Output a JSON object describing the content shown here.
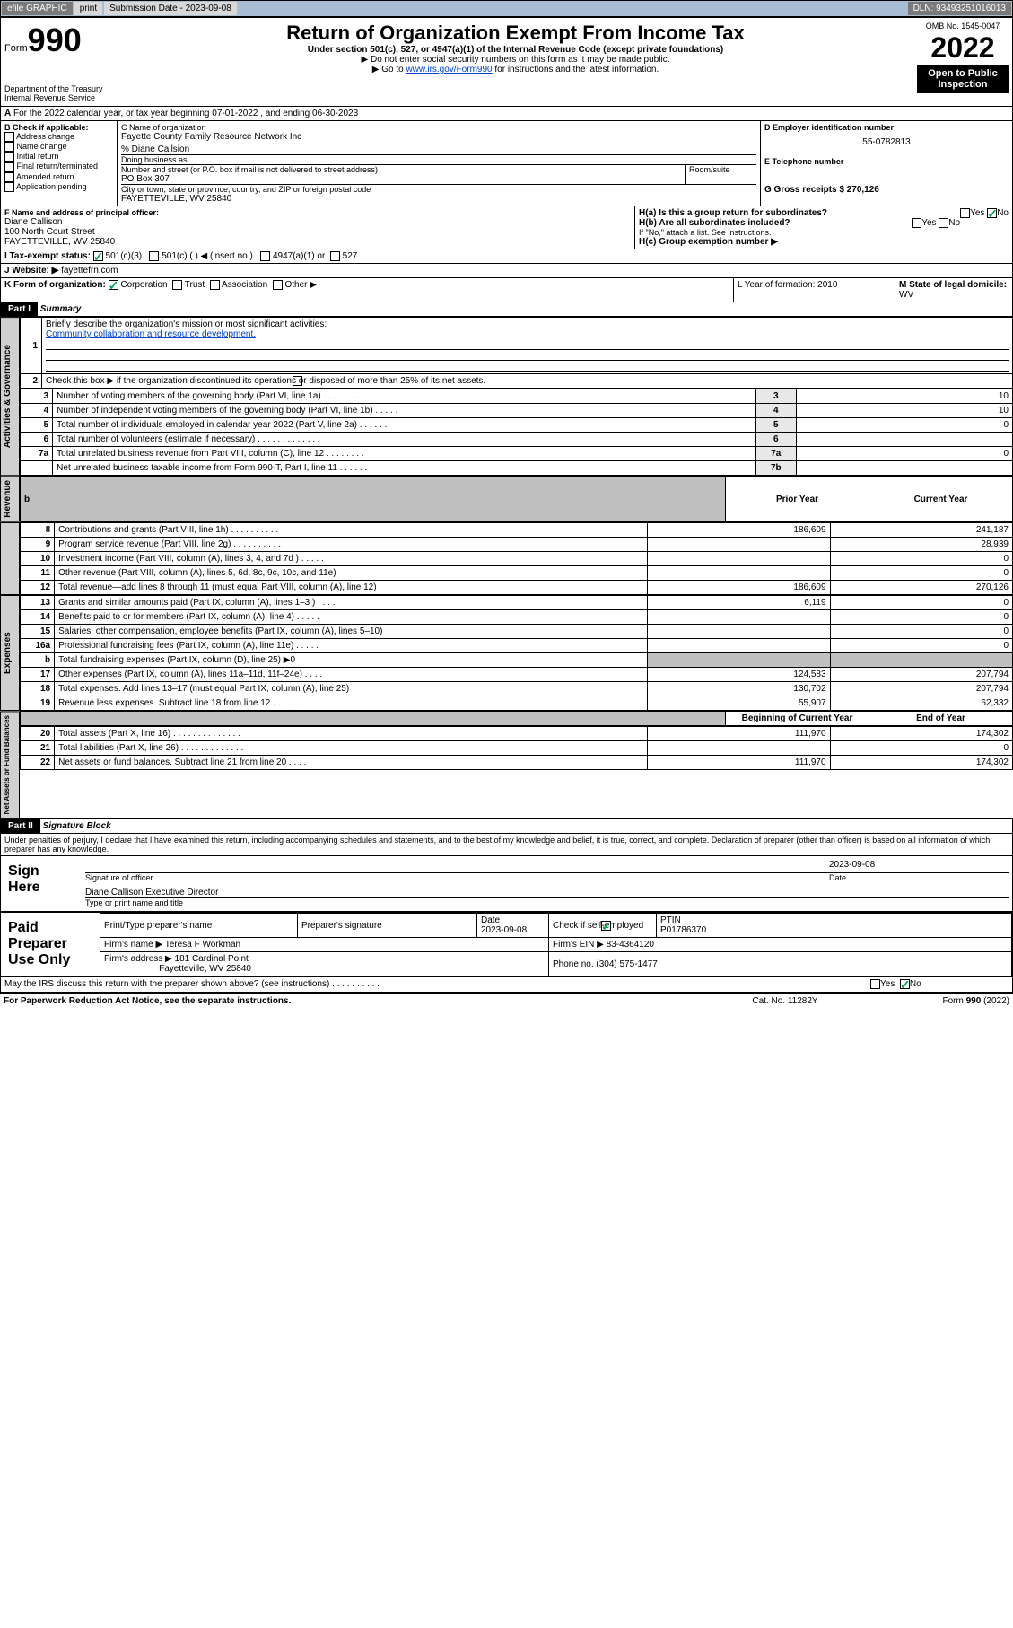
{
  "topbar": {
    "efile": "efile GRAPHIC",
    "print": "print",
    "sub_label": "Submission Date - 2023-09-08",
    "dln": "DLN: 93493251016013"
  },
  "header": {
    "form_word": "Form",
    "form_num": "990",
    "title": "Return of Organization Exempt From Income Tax",
    "sub1": "Under section 501(c), 527, or 4947(a)(1) of the Internal Revenue Code (except private foundations)",
    "sub2": "▶ Do not enter social security numbers on this form as it may be made public.",
    "sub3_a": "▶ Go to ",
    "sub3_link": "www.irs.gov/Form990",
    "sub3_b": " for instructions and the latest information.",
    "omb": "OMB No. 1545-0047",
    "year": "2022",
    "pub": "Open to Public Inspection",
    "dept": "Department of the Treasury",
    "irs": "Internal Revenue Service"
  },
  "period": {
    "line": "For the 2022 calendar year, or tax year beginning 07-01-2022   , and ending 06-30-2023",
    "label_a": "A"
  },
  "boxB": {
    "title": "B Check if applicable:",
    "opts": [
      "Address change",
      "Name change",
      "Initial return",
      "Final return/terminated",
      "Amended return",
      "Application pending"
    ]
  },
  "boxC": {
    "label": "C Name of organization",
    "name": "Fayette County Family Resource Network Inc",
    "care": "% Diane Callsion",
    "dba_label": "Doing business as",
    "addr_label": "Number and street (or P.O. box if mail is not delivered to street address)",
    "room_label": "Room/suite",
    "addr": "PO Box 307",
    "city_label": "City or town, state or province, country, and ZIP or foreign postal code",
    "city": "FAYETTEVILLE, WV  25840"
  },
  "boxD": {
    "label": "D Employer identification number",
    "val": "55-0782813"
  },
  "boxE": {
    "label": "E Telephone number",
    "val": ""
  },
  "boxG": {
    "label": "G Gross receipts $ 270,126"
  },
  "boxF": {
    "label": "F Name and address of principal officer:",
    "name": "Diane Callison",
    "addr": "100 North Court Street",
    "city": "FAYETTEVILLE, WV  25840"
  },
  "boxH": {
    "a": "H(a)  Is this a group return for subordinates?",
    "b": "H(b)  Are all subordinates included?",
    "note": "If \"No,\" attach a list. See instructions.",
    "c": "H(c)  Group exemption number ▶",
    "yes": "Yes",
    "no": "No"
  },
  "rowI": {
    "label": "I   Tax-exempt status:",
    "o1": "501(c)(3)",
    "o2": "501(c) (  ) ◀ (insert no.)",
    "o3": "4947(a)(1) or",
    "o4": "527"
  },
  "rowJ": {
    "label": "J   Website: ▶",
    "val": "fayettefrn.com"
  },
  "rowK": {
    "label": "K Form of organization:",
    "o1": "Corporation",
    "o2": "Trust",
    "o3": "Association",
    "o4": "Other ▶"
  },
  "rowL": {
    "label": "L Year of formation: 2010"
  },
  "rowM": {
    "label": "M State of legal domicile:",
    "val": "WV"
  },
  "part1": {
    "label": "Part I",
    "title": "Summary"
  },
  "summary": {
    "q1": "Briefly describe the organization's mission or most significant activities:",
    "mission": "Community collaboration and resource development.",
    "q2": "Check this box ▶        if the organization discontinued its operations or disposed of more than 25% of its net assets.",
    "rows": [
      {
        "n": "3",
        "t": "Number of voting members of the governing body (Part VI, line 1a)   .   .   .   .   .   .   .   .   .",
        "box": "3",
        "v": "10"
      },
      {
        "n": "4",
        "t": "Number of independent voting members of the governing body (Part VI, line 1b)   .   .   .   .   .",
        "box": "4",
        "v": "10"
      },
      {
        "n": "5",
        "t": "Total number of individuals employed in calendar year 2022 (Part V, line 2a)   .   .   .   .   .   .",
        "box": "5",
        "v": "0"
      },
      {
        "n": "6",
        "t": "Total number of volunteers (estimate if necessary)   .   .   .   .   .   .   .   .   .   .   .   .   .",
        "box": "6",
        "v": ""
      },
      {
        "n": "7a",
        "t": "Total unrelated business revenue from Part VIII, column (C), line 12   .   .   .   .   .   .   .   .",
        "box": "7a",
        "v": "0"
      },
      {
        "n": "",
        "t": "Net unrelated business taxable income from Form 990-T, Part I, line 11   .   .   .   .   .   .   .",
        "box": "7b",
        "v": ""
      }
    ],
    "col_prior": "Prior Year",
    "col_current": "Current Year",
    "col_begin": "Beginning of Current Year",
    "col_end": "End of Year"
  },
  "revenue": [
    {
      "n": "8",
      "t": "Contributions and grants (Part VIII, line 1h)   .   .   .   .   .   .   .   .   .   .",
      "p": "186,609",
      "c": "241,187"
    },
    {
      "n": "9",
      "t": "Program service revenue (Part VIII, line 2g)   .   .   .   .   .   .   .   .   .   .",
      "p": "",
      "c": "28,939"
    },
    {
      "n": "10",
      "t": "Investment income (Part VIII, column (A), lines 3, 4, and 7d )   .   .   .   .   .",
      "p": "",
      "c": "0"
    },
    {
      "n": "11",
      "t": "Other revenue (Part VIII, column (A), lines 5, 6d, 8c, 9c, 10c, and 11e)",
      "p": "",
      "c": "0"
    },
    {
      "n": "12",
      "t": "Total revenue—add lines 8 through 11 (must equal Part VIII, column (A), line 12)",
      "p": "186,609",
      "c": "270,126"
    }
  ],
  "expenses": [
    {
      "n": "13",
      "t": "Grants and similar amounts paid (Part IX, column (A), lines 1–3 )   .   .   .   .",
      "p": "6,119",
      "c": "0"
    },
    {
      "n": "14",
      "t": "Benefits paid to or for members (Part IX, column (A), line 4)   .   .   .   .   .",
      "p": "",
      "c": "0"
    },
    {
      "n": "15",
      "t": "Salaries, other compensation, employee benefits (Part IX, column (A), lines 5–10)",
      "p": "",
      "c": "0"
    },
    {
      "n": "16a",
      "t": "Professional fundraising fees (Part IX, column (A), line 11e)   .   .   .   .   .",
      "p": "",
      "c": "0"
    },
    {
      "n": "b",
      "t": "Total fundraising expenses (Part IX, column (D), line 25) ▶0",
      "p": "grey",
      "c": "grey"
    },
    {
      "n": "17",
      "t": "Other expenses (Part IX, column (A), lines 11a–11d, 11f–24e)   .   .   .   .",
      "p": "124,583",
      "c": "207,794"
    },
    {
      "n": "18",
      "t": "Total expenses. Add lines 13–17 (must equal Part IX, column (A), line 25)",
      "p": "130,702",
      "c": "207,794"
    },
    {
      "n": "19",
      "t": "Revenue less expenses. Subtract line 18 from line 12   .   .   .   .   .   .   .",
      "p": "55,907",
      "c": "62,332"
    }
  ],
  "netassets": [
    {
      "n": "20",
      "t": "Total assets (Part X, line 16)   .   .   .   .   .   .   .   .   .   .   .   .   .   .",
      "p": "111,970",
      "c": "174,302"
    },
    {
      "n": "21",
      "t": "Total liabilities (Part X, line 26)   .   .   .   .   .   .   .   .   .   .   .   .   .",
      "p": "",
      "c": "0"
    },
    {
      "n": "22",
      "t": "Net assets or fund balances. Subtract line 21 from line 20   .   .   .   .   .",
      "p": "111,970",
      "c": "174,302"
    }
  ],
  "vlabels": {
    "gov": "Activities & Governance",
    "rev": "Revenue",
    "exp": "Expenses",
    "net": "Net Assets or Fund Balances"
  },
  "part2": {
    "label": "Part II",
    "title": "Signature Block"
  },
  "sig": {
    "decl": "Under penalties of perjury, I declare that I have examined this return, including accompanying schedules and statements, and to the best of my knowledge and belief, it is true, correct, and complete. Declaration of preparer (other than officer) is based on all information of which preparer has any knowledge.",
    "here": "Sign Here",
    "date": "2023-09-08",
    "sig_of": "Signature of officer",
    "date_lbl": "Date",
    "name": "Diane Callison  Executive Director",
    "name_lbl": "Type or print name and title",
    "paid": "Paid Preparer Use Only",
    "pt_name_lbl": "Print/Type preparer's name",
    "pt_sig_lbl": "Preparer's signature",
    "pt_date_lbl": "Date",
    "pt_date": "2023-09-08",
    "pt_check_lbl": "Check          if self-employed",
    "ptin_lbl": "PTIN",
    "ptin": "P01786370",
    "firm_name_lbl": "Firm's name   ▶",
    "firm_name": "Teresa F Workman",
    "firm_ein_lbl": "Firm's EIN ▶",
    "firm_ein": "83-4364120",
    "firm_addr_lbl": "Firm's address ▶",
    "firm_addr1": "181 Cardinal Point",
    "firm_addr2": "Fayetteville, WV 25840",
    "phone_lbl": "Phone no.",
    "phone": "(304) 575-1477"
  },
  "footer": {
    "discuss": "May the IRS discuss this return with the preparer shown above? (see instructions)   .   .   .   .   .   .   .   .   .   .",
    "pra": "For Paperwork Reduction Act Notice, see the separate instructions.",
    "cat": "Cat. No. 11282Y",
    "form": "Form 990 (2022)",
    "yes": "Yes",
    "no": "No"
  }
}
